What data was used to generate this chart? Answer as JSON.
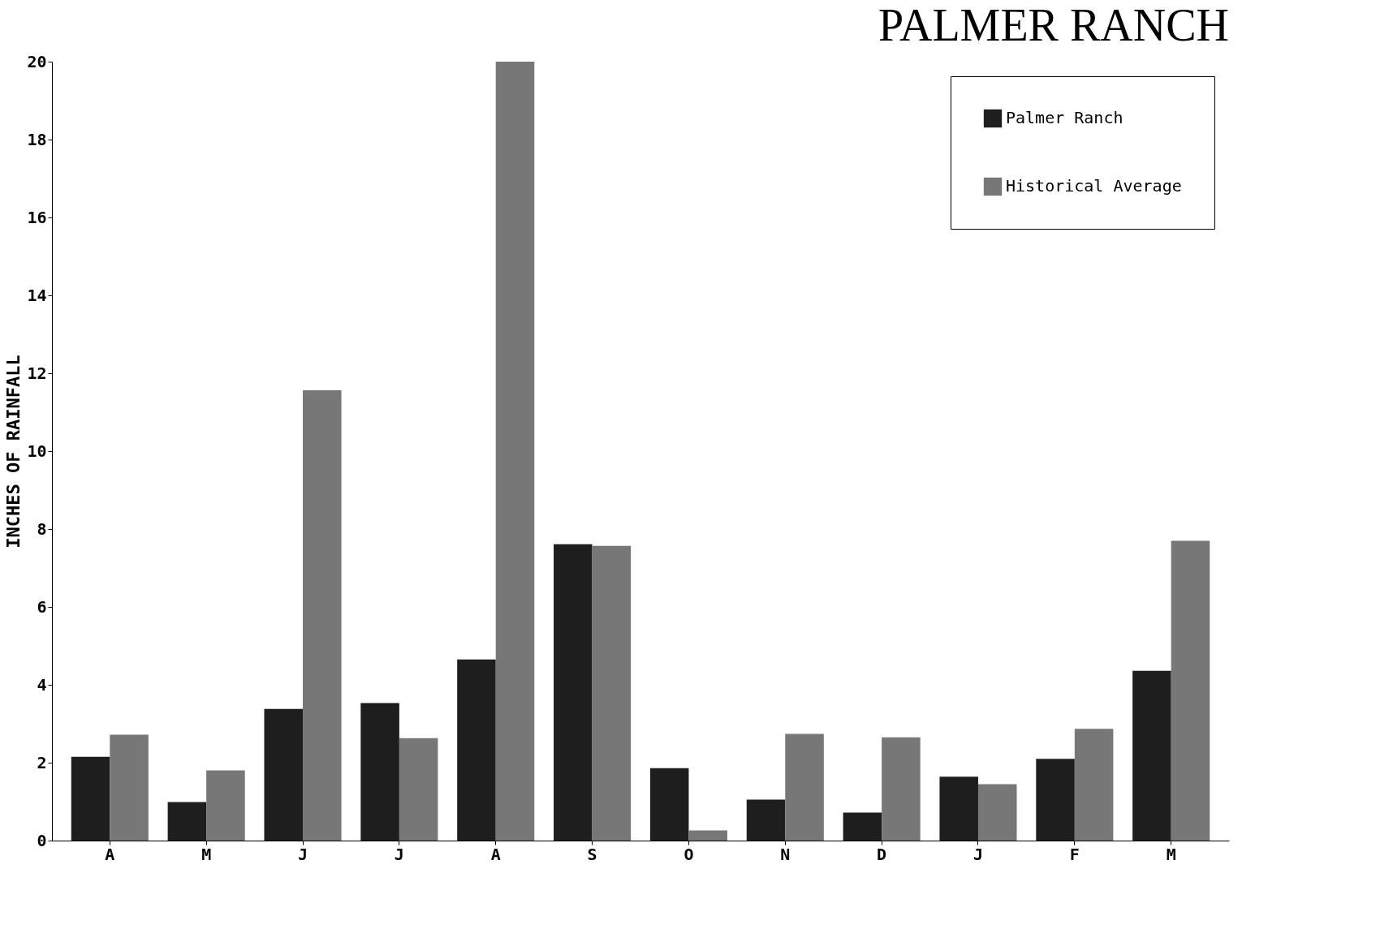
{
  "chart_data": {
    "type": "bar",
    "title": "PALMER RANCH",
    "ylabel": "INCHES OF RAINFALL",
    "categories": [
      "A",
      "M",
      "J",
      "J",
      "A",
      "S",
      "O",
      "N",
      "D",
      "J",
      "F",
      "M"
    ],
    "series": [
      {
        "name": "Palmer Ranch",
        "color": "#1e1e1e",
        "values": [
          2.15,
          0.99,
          3.38,
          3.53,
          4.65,
          7.61,
          1.86,
          1.05,
          0.72,
          1.64,
          2.1,
          4.36
        ]
      },
      {
        "name": "Historical Average",
        "color": "#777777",
        "values": [
          2.72,
          1.8,
          11.56,
          2.63,
          20.0,
          7.57,
          0.26,
          2.74,
          2.65,
          1.45,
          2.87,
          7.7
        ]
      }
    ],
    "ylim": [
      0,
      20
    ],
    "yticks": [
      0,
      2,
      4,
      6,
      8,
      10,
      12,
      14,
      16,
      18,
      20
    ],
    "grid": false,
    "legend": "top right"
  }
}
